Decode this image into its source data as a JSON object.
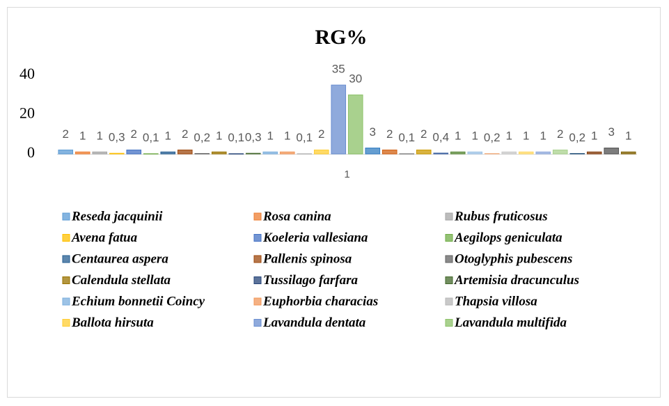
{
  "chart_data": {
    "type": "bar",
    "title": "RG%",
    "categories": [
      "1"
    ],
    "ylim": [
      0,
      40
    ],
    "yticks": [
      0,
      20,
      40
    ],
    "grid": false,
    "series": [
      {
        "name": "Reseda jacquinii",
        "color": "#5b9bd5",
        "values": [
          2
        ]
      },
      {
        "name": "Rosa canina",
        "color": "#ed7d31",
        "values": [
          1
        ]
      },
      {
        "name": "Rubus fruticosus",
        "color": "#a5a5a5",
        "values": [
          1
        ]
      },
      {
        "name": "Avena fatua",
        "color": "#ffc000",
        "values": [
          0.3
        ],
        "value_labels": [
          "0,3"
        ]
      },
      {
        "name": "Koeleria vallesiana",
        "color": "#4472c4",
        "values": [
          2
        ]
      },
      {
        "name": "Aegilops geniculata",
        "color": "#70ad47",
        "values": [
          0.1
        ],
        "value_labels": [
          "0,1"
        ]
      },
      {
        "name": "Centaurea aspera",
        "color": "#255e91",
        "values": [
          1
        ]
      },
      {
        "name": "Pallenis spinosa",
        "color": "#9e480e",
        "values": [
          2
        ]
      },
      {
        "name": "Otoglyphis pubescens",
        "color": "#636363",
        "values": [
          0.2
        ],
        "value_labels": [
          "0,2"
        ]
      },
      {
        "name": "Calendula stellata",
        "color": "#997300",
        "values": [
          1
        ]
      },
      {
        "name": "Tussilago farfara",
        "color": "#264478",
        "values": [
          0.1
        ],
        "value_labels": [
          "0,1"
        ]
      },
      {
        "name": "Artemisia dracunculus",
        "color": "#43682b",
        "values": [
          0.3
        ],
        "value_labels": [
          "0,3"
        ]
      },
      {
        "name": "Echium bonnetii Coincy",
        "color": "#7cafdd",
        "values": [
          1
        ]
      },
      {
        "name": "Euphorbia characias",
        "color": "#f1975a",
        "values": [
          1
        ]
      },
      {
        "name": "Thapsia villosa",
        "color": "#b7b7b7",
        "values": [
          0.1
        ],
        "value_labels": [
          "0,1"
        ]
      },
      {
        "name": "Ballota hirsuta",
        "color": "#ffcd33",
        "values": [
          2
        ]
      },
      {
        "name": "Lavandula dentata",
        "color": "#698ed0",
        "values": [
          35
        ]
      },
      {
        "name": "Lavandula multifida",
        "color": "#8cc168",
        "values": [
          30
        ]
      },
      {
        "color": "#327dc2",
        "values": [
          3
        ]
      },
      {
        "color": "#d26012",
        "values": [
          2
        ]
      },
      {
        "color": "#848484",
        "values": [
          0.1
        ],
        "value_labels": [
          "0,1"
        ]
      },
      {
        "color": "#cc9a00",
        "values": [
          2
        ]
      },
      {
        "color": "#3a5fa0",
        "values": [
          0.4
        ],
        "value_labels": [
          "0,4"
        ]
      },
      {
        "color": "#5a8a39",
        "values": [
          1
        ]
      },
      {
        "color": "#9dc3e6",
        "values": [
          1
        ]
      },
      {
        "color": "#f4b183",
        "values": [
          0.2
        ],
        "value_labels": [
          "0,2"
        ]
      },
      {
        "color": "#c9c9c9",
        "values": [
          1
        ]
      },
      {
        "color": "#ffd966",
        "values": [
          1
        ]
      },
      {
        "color": "#8faadc",
        "values": [
          1
        ]
      },
      {
        "color": "#a9d18e",
        "values": [
          2
        ]
      },
      {
        "color": "#1f4e79",
        "values": [
          0.2
        ],
        "value_labels": [
          "0,2"
        ]
      },
      {
        "color": "#843c0c",
        "values": [
          1
        ]
      },
      {
        "color": "#525252",
        "values": [
          3
        ]
      },
      {
        "color": "#7f6000",
        "values": [
          1
        ]
      }
    ]
  }
}
